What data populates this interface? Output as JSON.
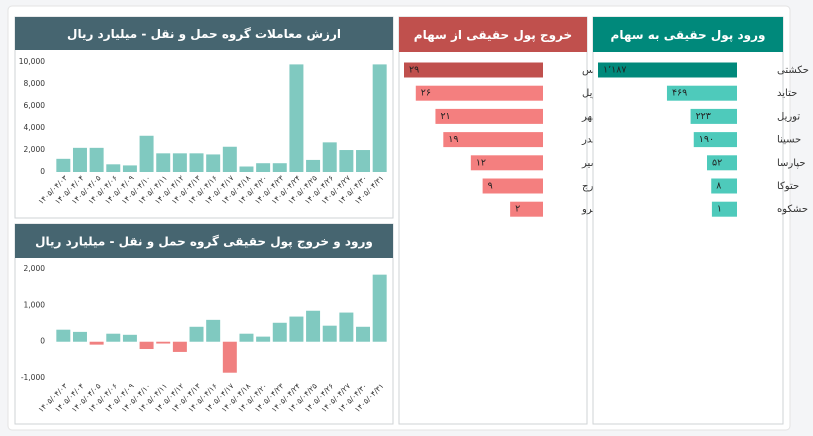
{
  "chart_data": [
    {
      "type": "bar",
      "title": "ارزش معاملات گروه حمل و نقل - میلیارد ریال",
      "header_color": "#466570",
      "categories": [
        "۱۴۰۵/۰۴/۰۳",
        "۱۴۰۵/۰۴/۰۴",
        "۱۴۰۵/۰۴/۰۵",
        "۱۴۰۵/۰۴/۰۶",
        "۱۴۰۵/۰۴/۰۹",
        "۱۴۰۵/۰۴/۱۰",
        "۱۴۰۵/۰۴/۱۱",
        "۱۴۰۵/۰۴/۱۲",
        "۱۴۰۵/۰۴/۱۳",
        "۱۴۰۵/۰۴/۱۶",
        "۱۴۰۵/۰۴/۱۷",
        "۱۴۰۵/۰۴/۱۸",
        "۱۴۰۵/۰۴/۲۰",
        "۱۴۰۵/۰۴/۲۳",
        "۱۴۰۵/۰۴/۲۴",
        "۱۴۰۵/۰۴/۲۵",
        "۱۴۰۵/۰۴/۲۶",
        "۱۴۰۵/۰۴/۲۷",
        "۱۴۰۵/۰۴/۳۰",
        "۱۴۰۵/۰۴/۳۱"
      ],
      "values": [
        1200,
        2200,
        2200,
        700,
        600,
        3300,
        1700,
        1700,
        1700,
        1600,
        2300,
        500,
        800,
        800,
        9800,
        1100,
        2700,
        2000,
        2000,
        9800
      ],
      "color": "#80c9c0",
      "ylim": [
        0,
        10200
      ],
      "yticks": [
        0,
        {
          "value": 2000,
          "label": "2,000"
        },
        {
          "value": 4000,
          "label": "4,000"
        },
        {
          "value": 6000,
          "label": "6,000"
        },
        {
          "value": 8000,
          "label": "8,000"
        },
        {
          "value": 10000,
          "label": "10,000"
        }
      ]
    },
    {
      "type": "bar",
      "title": "ورود و خروج پول حقیقی گروه حمل و نقل - میلیارد ریال",
      "header_color": "#466570",
      "categories": [
        "۱۴۰۵/۰۴/۰۳",
        "۱۴۰۵/۰۴/۰۴",
        "۱۴۰۵/۰۴/۰۵",
        "۱۴۰۵/۰۴/۰۶",
        "۱۴۰۵/۰۴/۰۹",
        "۱۴۰۵/۰۴/۱۰",
        "۱۴۰۵/۰۴/۱۱",
        "۱۴۰۵/۰۴/۱۲",
        "۱۴۰۵/۰۴/۱۳",
        "۱۴۰۵/۰۴/۱۶",
        "۱۴۰۵/۰۴/۱۷",
        "۱۴۰۵/۰۴/۱۸",
        "۱۴۰۵/۰۴/۲۰",
        "۱۴۰۵/۰۴/۲۳",
        "۱۴۰۵/۰۴/۲۴",
        "۱۴۰۵/۰۴/۲۵",
        "۱۴۰۵/۰۴/۲۶",
        "۱۴۰۵/۰۴/۲۷",
        "۱۴۰۵/۰۴/۳۰",
        "۱۴۰۵/۰۴/۳۱"
      ],
      "values": [
        330,
        270,
        -80,
        220,
        190,
        -200,
        -50,
        -280,
        410,
        600,
        -850,
        220,
        140,
        520,
        690,
        850,
        440,
        800,
        410,
        1840
      ],
      "color": "#80c9c0",
      "negative_color": "#f08080",
      "ylim": [
        -1050,
        2050
      ],
      "yticks": [
        {
          "value": -1000,
          "label": "-1,000"
        },
        0,
        {
          "value": 1000,
          "label": "1,000"
        },
        {
          "value": 2000,
          "label": "2,000"
        }
      ]
    },
    {
      "type": "barh",
      "title": "خروج پول حقیقی از سهام",
      "header_color": "#c0504d",
      "categories": [
        "حفارس",
        "حریل",
        "حگهر",
        "حبندر",
        "حسیر",
        "حبندرج",
        "حپترو"
      ],
      "values": [
        29,
        26,
        21,
        19,
        12,
        9,
        2
      ],
      "value_labels": [
        "۲۹",
        "۲۶",
        "۲۱",
        "۱۹",
        "۱۲",
        "۹",
        "۲"
      ],
      "colors": [
        "#c0504d",
        "#f47f7f",
        "#f47f7f",
        "#f47f7f",
        "#f47f7f",
        "#f47f7f",
        "#f47f7f"
      ]
    },
    {
      "type": "barh",
      "title": "ورود پول حقیقی به سهام",
      "header_color": "#00897b",
      "categories": [
        "حکشتی",
        "حتاید",
        "توریل",
        "حسینا",
        "حپارسا",
        "حتوکا",
        "حشکوه"
      ],
      "values": [
        1187,
        469,
        223,
        190,
        52,
        8,
        1
      ],
      "value_labels": [
        "۱٬۱۸۷",
        "۴۶۹",
        "۲۲۳",
        "۱۹۰",
        "۵۲",
        "۸",
        "۱"
      ],
      "colors": [
        "#00897b",
        "#4ecabb",
        "#4ecabb",
        "#4ecabb",
        "#4ecabb",
        "#4ecabb",
        "#4ecabb"
      ]
    }
  ]
}
